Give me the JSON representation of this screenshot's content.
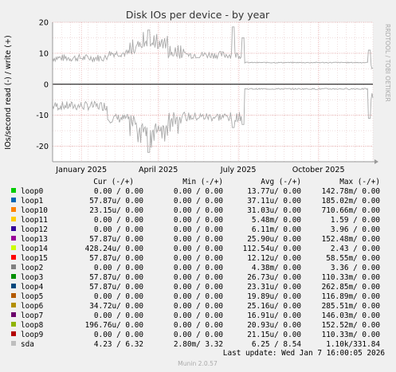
{
  "chart_data": {
    "type": "line",
    "title": "Disk IOs per device - by year",
    "ylabel": "IOs/second read (-) / write (+)",
    "side_text": "RRDTOOL / TOBI OETIKER",
    "ylim": [
      -25,
      20
    ],
    "y_ticks": [
      {
        "v": 20,
        "label": "20"
      },
      {
        "v": 10,
        "label": "10"
      },
      {
        "v": 0,
        "label": "0"
      },
      {
        "v": -10,
        "label": "-10"
      },
      {
        "v": -20,
        "label": "-20"
      }
    ],
    "x_ticks": [
      {
        "t": 0.09,
        "label": "January 2025"
      },
      {
        "t": 0.33,
        "label": "April 2025"
      },
      {
        "t": 0.58,
        "label": "July 2025"
      },
      {
        "t": 0.83,
        "label": "October 2025"
      }
    ],
    "grid": true,
    "series": [
      {
        "name": "sda",
        "color": "#aaaaaa"
      }
    ],
    "sda_profile": {
      "segments": [
        {
          "t0": 0.0,
          "t1": 0.17,
          "write": 8.5,
          "read": -7.0
        },
        {
          "t0": 0.17,
          "t1": 0.26,
          "write": 10.0,
          "read": -11.0
        },
        {
          "t0": 0.26,
          "t1": 0.36,
          "write": 12.5,
          "read": -14.0
        },
        {
          "t0": 0.36,
          "t1": 0.595,
          "write": 9.5,
          "read": -10.5
        },
        {
          "t0": 0.595,
          "t1": 0.985,
          "write": 7.0,
          "read": -1.5
        },
        {
          "t0": 0.985,
          "t1": 1.0,
          "write": 6.0,
          "read": -4.0
        }
      ],
      "peaks": [
        {
          "t": 0.3,
          "write": 17.5,
          "read": -22.0
        },
        {
          "t": 0.565,
          "write": 18.5,
          "read": -14.0
        },
        {
          "t": 0.595,
          "write": 15.0,
          "read": -13.0
        },
        {
          "t": 0.99,
          "write": 11.0,
          "read": -11.0
        }
      ]
    },
    "legend_header": {
      "cur": "Cur (-/+)",
      "min": "Min (-/+)",
      "avg": "Avg (-/+)",
      "max": "Max (-/+)"
    },
    "legend": [
      {
        "name": "loop0",
        "color": "#00cc00",
        "cur": "0.00 /  0.00",
        "min": "0.00 /  0.00",
        "avg": "13.77u/  0.00",
        "max": "142.78m/  0.00"
      },
      {
        "name": "loop1",
        "color": "#0066b3",
        "cur": "57.87u/  0.00",
        "min": "0.00 /  0.00",
        "avg": "37.11u/  0.00",
        "max": "185.02m/  0.00"
      },
      {
        "name": "loop10",
        "color": "#ff8000",
        "cur": "23.15u/  0.00",
        "min": "0.00 /  0.00",
        "avg": "31.03u/  0.00",
        "max": "710.66m/  0.00"
      },
      {
        "name": "loop11",
        "color": "#ffcc00",
        "cur": "0.00 /  0.00",
        "min": "0.00 /  0.00",
        "avg": "5.48m/  0.00",
        "max": "1.59 /  0.00"
      },
      {
        "name": "loop12",
        "color": "#330099",
        "cur": "0.00 /  0.00",
        "min": "0.00 /  0.00",
        "avg": "6.11m/  0.00",
        "max": "3.96 /  0.00"
      },
      {
        "name": "loop13",
        "color": "#990099",
        "cur": "57.87u/  0.00",
        "min": "0.00 /  0.00",
        "avg": "25.90u/  0.00",
        "max": "152.48m/  0.00"
      },
      {
        "name": "loop14",
        "color": "#ccff00",
        "cur": "428.24u/  0.00",
        "min": "0.00 /  0.00",
        "avg": "112.54u/  0.00",
        "max": "2.43 /  0.00"
      },
      {
        "name": "loop15",
        "color": "#ff0000",
        "cur": "57.87u/  0.00",
        "min": "0.00 /  0.00",
        "avg": "12.12u/  0.00",
        "max": "58.55m/  0.00"
      },
      {
        "name": "loop2",
        "color": "#808080",
        "cur": "0.00 /  0.00",
        "min": "0.00 /  0.00",
        "avg": "4.38m/  0.00",
        "max": "3.36 /  0.00"
      },
      {
        "name": "loop3",
        "color": "#008f00",
        "cur": "57.87u/  0.00",
        "min": "0.00 /  0.00",
        "avg": "26.73u/  0.00",
        "max": "110.33m/  0.00"
      },
      {
        "name": "loop4",
        "color": "#00487d",
        "cur": "57.87u/  0.00",
        "min": "0.00 /  0.00",
        "avg": "23.31u/  0.00",
        "max": "262.85m/  0.00"
      },
      {
        "name": "loop5",
        "color": "#b35a00",
        "cur": "0.00 /  0.00",
        "min": "0.00 /  0.00",
        "avg": "19.89u/  0.00",
        "max": "116.89m/  0.00"
      },
      {
        "name": "loop6",
        "color": "#b38f00",
        "cur": "34.72u/  0.00",
        "min": "0.00 /  0.00",
        "avg": "25.16u/  0.00",
        "max": "285.51m/  0.00"
      },
      {
        "name": "loop7",
        "color": "#6b006b",
        "cur": "0.00 /  0.00",
        "min": "0.00 /  0.00",
        "avg": "16.91u/  0.00",
        "max": "146.03m/  0.00"
      },
      {
        "name": "loop8",
        "color": "#8fb300",
        "cur": "196.76u/  0.00",
        "min": "0.00 /  0.00",
        "avg": "20.93u/  0.00",
        "max": "152.52m/  0.00"
      },
      {
        "name": "loop9",
        "color": "#b30000",
        "cur": "0.00 /  0.00",
        "min": "0.00 /  0.00",
        "avg": "21.15u/  0.00",
        "max": "110.33m/  0.00"
      },
      {
        "name": "sda",
        "color": "#bebebe",
        "cur": "4.23 /  6.32",
        "min": "2.80m/  3.32",
        "avg": "6.25 /  8.54",
        "max": "1.10k/331.84"
      }
    ],
    "last_update": "Last update: Wed Jan  7 16:00:05 2026",
    "footer": "Munin 2.0.57"
  }
}
